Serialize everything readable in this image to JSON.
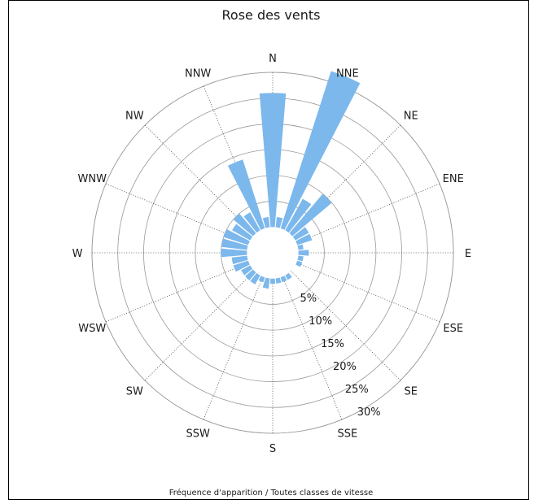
{
  "chart_data": {
    "type": "polar-bar",
    "title": "Rose des vents",
    "caption": "Fréquence d'apparition / Toutes classes de vitesse",
    "directions": [
      "N",
      "NNE",
      "NE",
      "ENE",
      "E",
      "ESE",
      "SE",
      "SSE",
      "S",
      "SSW",
      "SW",
      "WSW",
      "W",
      "WNW",
      "NW",
      "NNW"
    ],
    "sectors_per_direction": 2,
    "sector_values": [
      26,
      2,
      32,
      7,
      10,
      3,
      3,
      1,
      2,
      1,
      1,
      0,
      0,
      1,
      1,
      1,
      1,
      2,
      1,
      2,
      2,
      2,
      3,
      3,
      5,
      5,
      5,
      4,
      5,
      4,
      14,
      2
    ],
    "ring_labels": [
      "5%",
      "10%",
      "15%",
      "20%",
      "25%",
      "30%"
    ],
    "ring_values": [
      5,
      10,
      15,
      20,
      25,
      30
    ],
    "inner_offset": 5,
    "rmax": 35,
    "bar_color": "#7cb8ec",
    "grid_color": "#999999"
  }
}
